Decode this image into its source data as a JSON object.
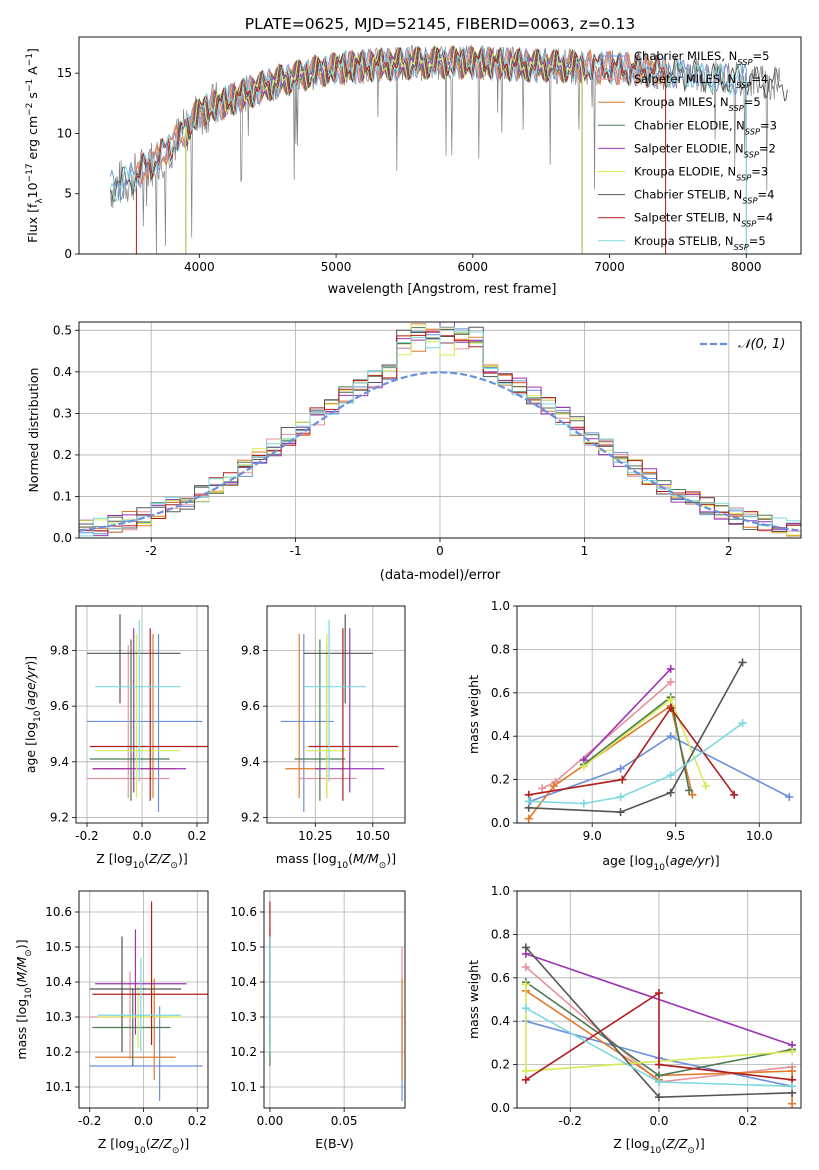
{
  "figure_title": "PLATE=0625, MJD=52145, FIBERID=0063, z=0.13",
  "colors": {
    "series": [
      "#6a8fdc",
      "#e8929e",
      "#e07a2e",
      "#4c7a55",
      "#9b34b4",
      "#d9ea55",
      "#555555",
      "#b01e1e",
      "#7ed8dd"
    ],
    "grid": "#b0b0b0",
    "normal_curve": "#6a8fdc",
    "gray_spectrum": "#808080"
  },
  "chart_data": [
    {
      "id": "spectrum",
      "type": "line",
      "xlabel": "wavelength [Angstrom, rest frame]",
      "ylabel": "Flux [f_λ10^{-17} erg cm^{-2} s^{-1} A^{-1}]",
      "xlim": [
        3120,
        8400
      ],
      "ylim": [
        0,
        18
      ],
      "xticks": [
        4000,
        5000,
        6000,
        7000,
        8000
      ],
      "yticks": [
        0,
        5,
        10,
        15
      ],
      "grid": false,
      "legend_position": "right",
      "legend": [
        "Chabrier MILES, N_SSP=5",
        "Salpeter MILES, N_SSP=4",
        "Kroupa MILES, N_SSP=5",
        "Chabrier ELODIE, N_SSP=3",
        "Salpeter ELODIE, N_SSP=2",
        "Kroupa ELODIE, N_SSP=3",
        "Chabrier STELIB, N_SSP=4",
        "Salpeter STELIB, N_SSP=4",
        "Kroupa STELIB, N_SSP=5"
      ],
      "continuum": {
        "x": [
          3350,
          3500,
          3700,
          3900,
          4000,
          4200,
          4400,
          4600,
          4800,
          5000,
          5200,
          5500,
          5800,
          6000,
          6300,
          6600,
          6900,
          7200,
          7500,
          7800,
          8000,
          8300
        ],
        "y": [
          5.5,
          6.2,
          8.0,
          10.2,
          11.8,
          12.6,
          13.6,
          14.4,
          15.0,
          15.4,
          15.6,
          15.8,
          15.9,
          15.9,
          15.7,
          15.6,
          15.5,
          15.3,
          15.0,
          14.6,
          14.4,
          14.0
        ]
      },
      "model_ranges": [
        {
          "series": 0,
          "x_start": 3350,
          "x_end": 8000
        },
        {
          "series": 1,
          "x_start": 3540,
          "x_end": 7410
        },
        {
          "series": 2,
          "x_start": 3540,
          "x_end": 7410
        },
        {
          "series": 3,
          "x_start": 3900,
          "x_end": 6800
        },
        {
          "series": 4,
          "x_start": 3900,
          "x_end": 6800
        },
        {
          "series": 5,
          "x_start": 3900,
          "x_end": 6800
        },
        {
          "series": 6,
          "x_start": 3350,
          "x_end": 8300
        },
        {
          "series": 7,
          "x_start": 3540,
          "x_end": 7410
        },
        {
          "series": 8,
          "x_start": 3350,
          "x_end": 8000
        }
      ]
    },
    {
      "id": "residuals",
      "type": "line",
      "xlabel": "(data-model)/error",
      "ylabel": "Normed distribution",
      "xlim": [
        -2.5,
        2.5
      ],
      "ylim": [
        0,
        0.52
      ],
      "xticks": [
        -2,
        -1,
        0,
        1,
        2
      ],
      "yticks": [
        0.0,
        0.1,
        0.2,
        0.3,
        0.4,
        0.5
      ],
      "grid": true,
      "legend_position": "top-right",
      "legend": [
        "𝒩(0, 1)"
      ],
      "bin_width": 0.1
    },
    {
      "id": "age_vs_Z",
      "type": "scatter",
      "xlabel": "Z [log10(Z/Z⊙)]",
      "ylabel": "age [log10(age/yr)]",
      "xlim": [
        -0.24,
        0.24
      ],
      "ylim": [
        9.18,
        9.96
      ],
      "xticks": [
        -0.2,
        0.0,
        0.2
      ],
      "yticks": [
        9.2,
        9.4,
        9.6,
        9.8
      ],
      "grid": true,
      "points": [
        {
          "series": 0,
          "x": 0.06,
          "xlo": -0.2,
          "xhi": 0.22,
          "y": 9.545,
          "ylo": 9.22,
          "yhi": 9.86
        },
        {
          "series": 1,
          "x": -0.05,
          "xlo": -0.2,
          "xhi": 0.1,
          "y": 9.34,
          "ylo": 9.27,
          "yhi": 9.82
        },
        {
          "series": 2,
          "x": 0.04,
          "xlo": -0.18,
          "xhi": 0.12,
          "y": 9.375,
          "ylo": 9.27,
          "yhi": 9.86
        },
        {
          "series": 3,
          "x": -0.04,
          "xlo": -0.19,
          "xhi": 0.1,
          "y": 9.41,
          "ylo": 9.26,
          "yhi": 9.84
        },
        {
          "series": 4,
          "x": -0.03,
          "xlo": -0.18,
          "xhi": 0.16,
          "y": 9.375,
          "ylo": 9.29,
          "yhi": 9.88
        },
        {
          "series": 5,
          "x": -0.02,
          "xlo": -0.17,
          "xhi": 0.14,
          "y": 9.44,
          "ylo": 9.27,
          "yhi": 9.86
        },
        {
          "series": 6,
          "x": -0.08,
          "xlo": -0.2,
          "xhi": 0.14,
          "y": 9.79,
          "ylo": 9.61,
          "yhi": 9.93
        },
        {
          "series": 7,
          "x": 0.03,
          "xlo": -0.19,
          "xhi": 0.27,
          "y": 9.455,
          "ylo": 9.26,
          "yhi": 9.88
        },
        {
          "series": 8,
          "x": -0.01,
          "xlo": -0.17,
          "xhi": 0.14,
          "y": 9.67,
          "ylo": 9.33,
          "yhi": 9.91
        }
      ]
    },
    {
      "id": "age_vs_mass",
      "type": "scatter",
      "xlabel": "mass [log10(M/M⊙)]",
      "ylabel": "",
      "xlim": [
        10.04,
        10.64
      ],
      "ylim": [
        9.18,
        9.96
      ],
      "xticks": [
        10.25,
        10.5
      ],
      "yticks": [
        9.2,
        9.4,
        9.6,
        9.8
      ],
      "grid": true,
      "points": [
        {
          "series": 0,
          "x": 10.2,
          "xlo": 10.1,
          "xhi": 10.33,
          "y": 9.545,
          "ylo": 9.22,
          "yhi": 9.86
        },
        {
          "series": 1,
          "x": 10.3,
          "xlo": 10.18,
          "xhi": 10.43,
          "y": 9.34,
          "ylo": 9.27,
          "yhi": 9.82
        },
        {
          "series": 2,
          "x": 10.18,
          "xlo": 10.12,
          "xhi": 10.3,
          "y": 9.375,
          "ylo": 9.27,
          "yhi": 9.86
        },
        {
          "series": 3,
          "x": 10.27,
          "xlo": 10.16,
          "xhi": 10.38,
          "y": 9.41,
          "ylo": 9.26,
          "yhi": 9.84
        },
        {
          "series": 4,
          "x": 10.4,
          "xlo": 10.25,
          "xhi": 10.55,
          "y": 9.375,
          "ylo": 9.29,
          "yhi": 9.88
        },
        {
          "series": 5,
          "x": 10.3,
          "xlo": 10.21,
          "xhi": 10.39,
          "y": 9.44,
          "ylo": 9.27,
          "yhi": 9.86
        },
        {
          "series": 6,
          "x": 10.38,
          "xlo": 10.2,
          "xhi": 10.5,
          "y": 9.79,
          "ylo": 9.61,
          "yhi": 9.93
        },
        {
          "series": 7,
          "x": 10.37,
          "xlo": 10.22,
          "xhi": 10.61,
          "y": 9.455,
          "ylo": 9.26,
          "yhi": 9.88
        },
        {
          "series": 8,
          "x": 10.31,
          "xlo": 10.2,
          "xhi": 10.47,
          "y": 9.67,
          "ylo": 9.33,
          "yhi": 9.91
        }
      ]
    },
    {
      "id": "weight_vs_age",
      "type": "line",
      "xlabel": "age [log10(age/yr)]",
      "ylabel": "mass weight",
      "xlim": [
        8.55,
        10.25
      ],
      "ylim": [
        0,
        1
      ],
      "xticks": [
        9.0,
        9.5,
        10.0
      ],
      "yticks": [
        0.0,
        0.2,
        0.4,
        0.6,
        0.8,
        1.0
      ],
      "grid": true,
      "series": [
        {
          "series": 0,
          "x": [
            8.63,
            9.17,
            9.47,
            10.18
          ],
          "y": [
            0.1,
            0.25,
            0.4,
            0.12
          ]
        },
        {
          "series": 1,
          "x": [
            8.7,
            8.78,
            9.47
          ],
          "y": [
            0.16,
            0.19,
            0.65
          ]
        },
        {
          "series": 2,
          "x": [
            8.62,
            8.77,
            9.47,
            9.6
          ],
          "y": [
            0.02,
            0.17,
            0.54,
            0.13
          ]
        },
        {
          "series": 3,
          "x": [
            8.95,
            9.47,
            9.58
          ],
          "y": [
            0.27,
            0.58,
            0.15
          ]
        },
        {
          "series": 4,
          "x": [
            8.95,
            9.47
          ],
          "y": [
            0.29,
            0.71
          ]
        },
        {
          "series": 5,
          "x": [
            8.95,
            9.47,
            9.68
          ],
          "y": [
            0.26,
            0.57,
            0.17
          ]
        },
        {
          "series": 6,
          "x": [
            8.62,
            9.17,
            9.47,
            9.9
          ],
          "y": [
            0.07,
            0.05,
            0.14,
            0.74
          ]
        },
        {
          "series": 7,
          "x": [
            8.62,
            9.18,
            9.47,
            9.85
          ],
          "y": [
            0.13,
            0.2,
            0.53,
            0.13
          ]
        },
        {
          "series": 8,
          "x": [
            8.62,
            8.95,
            9.17,
            9.47,
            9.9
          ],
          "y": [
            0.1,
            0.09,
            0.12,
            0.22,
            0.46
          ]
        }
      ]
    },
    {
      "id": "mass_vs_Z",
      "type": "scatter",
      "xlabel": "Z [log10(Z/Z⊙)]",
      "ylabel": "mass [log10(M/M⊙)]",
      "xlim": [
        -0.24,
        0.24
      ],
      "ylim": [
        10.04,
        10.66
      ],
      "xticks": [
        -0.2,
        0.0,
        0.2
      ],
      "yticks": [
        10.1,
        10.2,
        10.3,
        10.4,
        10.5,
        10.6
      ],
      "grid": true,
      "points": [
        {
          "series": 0,
          "x": 0.06,
          "xlo": -0.2,
          "xhi": 0.22,
          "y": 10.16,
          "ylo": 10.06,
          "yhi": 10.33
        },
        {
          "series": 1,
          "x": -0.05,
          "xlo": -0.2,
          "xhi": 0.1,
          "y": 10.3,
          "ylo": 10.18,
          "yhi": 10.43
        },
        {
          "series": 2,
          "x": 0.04,
          "xlo": -0.18,
          "xhi": 0.12,
          "y": 10.185,
          "ylo": 10.12,
          "yhi": 10.41
        },
        {
          "series": 3,
          "x": -0.04,
          "xlo": -0.19,
          "xhi": 0.1,
          "y": 10.27,
          "ylo": 10.16,
          "yhi": 10.38
        },
        {
          "series": 4,
          "x": -0.03,
          "xlo": -0.18,
          "xhi": 0.16,
          "y": 10.395,
          "ylo": 10.25,
          "yhi": 10.55
        },
        {
          "series": 5,
          "x": -0.02,
          "xlo": -0.17,
          "xhi": 0.14,
          "y": 10.3,
          "ylo": 10.21,
          "yhi": 10.39
        },
        {
          "series": 6,
          "x": -0.08,
          "xlo": -0.2,
          "xhi": 0.14,
          "y": 10.38,
          "ylo": 10.2,
          "yhi": 10.53
        },
        {
          "series": 7,
          "x": 0.03,
          "xlo": -0.19,
          "xhi": 0.27,
          "y": 10.365,
          "ylo": 10.22,
          "yhi": 10.63
        },
        {
          "series": 8,
          "x": -0.01,
          "xlo": -0.17,
          "xhi": 0.14,
          "y": 10.305,
          "ylo": 10.2,
          "yhi": 10.47
        }
      ]
    },
    {
      "id": "mass_vs_ebv",
      "type": "scatter",
      "xlabel": "E(B-V)",
      "ylabel": "",
      "xlim": [
        -0.004,
        0.091
      ],
      "ylim": [
        10.04,
        10.66
      ],
      "xticks": [
        0.0,
        0.05
      ],
      "yticks": [
        10.1,
        10.2,
        10.3,
        10.4,
        10.5,
        10.6
      ],
      "grid": true,
      "error_bars": [
        {
          "series": 0,
          "x": 0.089,
          "ylo": 10.06,
          "yhi": 10.33
        },
        {
          "series": 1,
          "x": 0.089,
          "ylo": 10.18,
          "yhi": 10.5
        },
        {
          "series": 2,
          "x": 0.089,
          "ylo": 10.12,
          "yhi": 10.41
        },
        {
          "series": 3,
          "x": 0.0,
          "ylo": 10.16,
          "yhi": 10.38
        },
        {
          "series": 4,
          "x": 0.0,
          "ylo": 10.25,
          "yhi": 10.55
        },
        {
          "series": 5,
          "x": 0.0,
          "ylo": 10.21,
          "yhi": 10.45
        },
        {
          "series": 6,
          "x": 0.0,
          "ylo": 10.2,
          "yhi": 10.53
        },
        {
          "series": 7,
          "x": 0.0,
          "ylo": 10.22,
          "yhi": 10.63
        },
        {
          "series": 8,
          "x": 0.0,
          "ylo": 10.2,
          "yhi": 10.53
        }
      ]
    },
    {
      "id": "weight_vs_Z",
      "type": "line",
      "xlabel": "Z [log10(Z/Z⊙)]",
      "ylabel": "mass weight",
      "xlim": [
        -0.32,
        0.32
      ],
      "ylim": [
        0,
        1
      ],
      "xticks": [
        -0.2,
        0.0,
        0.2
      ],
      "yticks": [
        0.0,
        0.2,
        0.4,
        0.6,
        0.8,
        1.0
      ],
      "grid": true,
      "series": [
        {
          "series": 0,
          "x": [
            -0.3,
            0.0,
            0.3
          ],
          "y": [
            0.4,
            0.23,
            0.1
          ]
        },
        {
          "series": 1,
          "x": [
            -0.3,
            0.0,
            0.3
          ],
          "y": [
            0.65,
            0.12,
            0.19
          ]
        },
        {
          "series": 2,
          "x": [
            -0.3,
            0.0,
            0.0,
            0.3,
            0.3
          ],
          "y": [
            0.54,
            0.13,
            0.15,
            0.17,
            0.02
          ]
        },
        {
          "series": 3,
          "x": [
            -0.3,
            0.0,
            0.3
          ],
          "y": [
            0.58,
            0.15,
            0.27
          ]
        },
        {
          "series": 4,
          "x": [
            -0.3,
            0.3
          ],
          "y": [
            0.71,
            0.29
          ]
        },
        {
          "series": 5,
          "x": [
            -0.3,
            -0.3,
            0.3
          ],
          "y": [
            0.57,
            0.17,
            0.26
          ]
        },
        {
          "series": 6,
          "x": [
            -0.3,
            0.0,
            0.3
          ],
          "y": [
            0.74,
            0.05,
            0.07
          ]
        },
        {
          "series": 7,
          "x": [
            -0.3,
            0.0,
            0.0,
            0.3
          ],
          "y": [
            0.13,
            0.53,
            0.2,
            0.13
          ]
        },
        {
          "series": 8,
          "x": [
            -0.3,
            0.0,
            0.3
          ],
          "y": [
            0.46,
            0.12,
            0.1
          ]
        }
      ]
    }
  ]
}
